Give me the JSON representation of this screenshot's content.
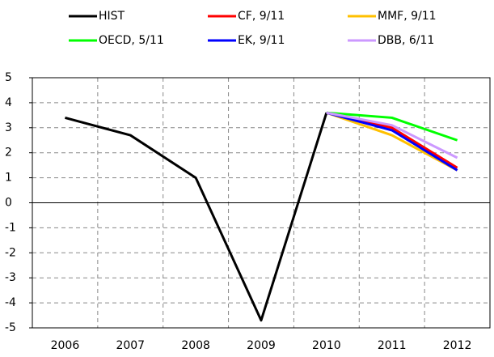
{
  "chart_data": {
    "type": "line",
    "categories": [
      "2006",
      "2007",
      "2008",
      "2009",
      "2010",
      "2011",
      "2012"
    ],
    "series": [
      {
        "name": "HIST",
        "color": "#000000",
        "values": [
          3.4,
          2.7,
          1.0,
          -4.7,
          3.6,
          null,
          null
        ]
      },
      {
        "name": "CF, 9/11",
        "color": "#ff0000",
        "values": [
          null,
          null,
          null,
          null,
          3.6,
          3.0,
          1.4
        ]
      },
      {
        "name": "MMF, 9/11",
        "color": "#ffc000",
        "values": [
          null,
          null,
          null,
          null,
          3.6,
          2.7,
          1.3
        ]
      },
      {
        "name": "OECD, 5/11",
        "color": "#00ff00",
        "values": [
          null,
          null,
          null,
          null,
          3.6,
          3.4,
          2.5
        ]
      },
      {
        "name": "EK, 9/11",
        "color": "#0000ff",
        "values": [
          null,
          null,
          null,
          null,
          3.6,
          2.9,
          1.3
        ]
      },
      {
        "name": "DBB, 6/11",
        "color": "#cc99ff",
        "values": [
          null,
          null,
          null,
          null,
          3.6,
          3.1,
          1.8
        ]
      }
    ],
    "ylim": [
      -5,
      5
    ],
    "yticks": [
      -5,
      -4,
      -3,
      -2,
      -1,
      0,
      1,
      2,
      3,
      4,
      5
    ],
    "grid": true
  }
}
